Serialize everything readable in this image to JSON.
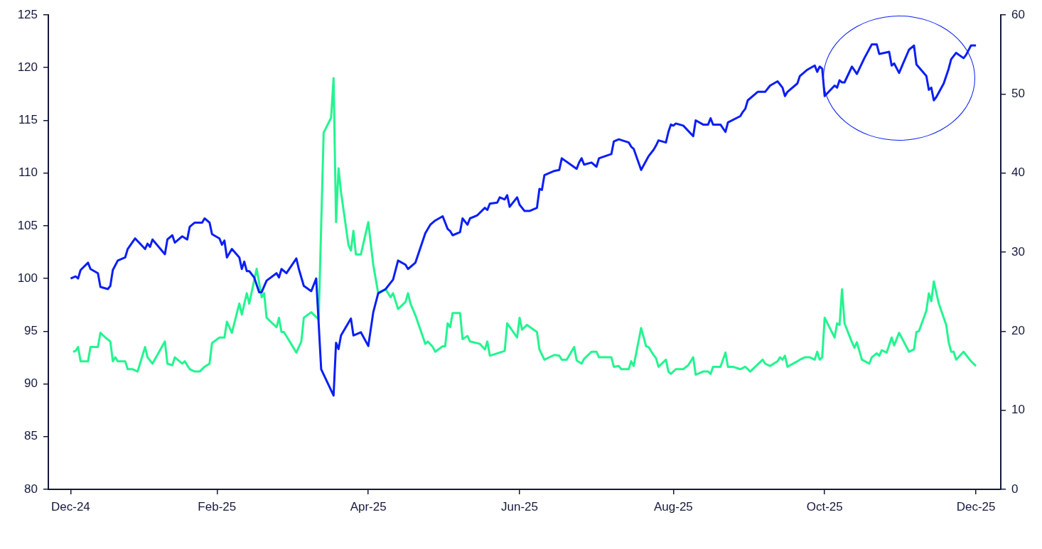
{
  "chart_data": {
    "type": "line",
    "marker": "none",
    "grid": false,
    "xlim": [
      "2024-12-22",
      "2026-01-10"
    ],
    "xticks": [
      {
        "value": "2024-12-31",
        "label": "Dec-24"
      },
      {
        "value": "2025-02-28",
        "label": "Feb-25"
      },
      {
        "value": "2025-04-30",
        "label": "Apr-25"
      },
      {
        "value": "2025-06-30",
        "label": "Jun-25"
      },
      {
        "value": "2025-08-31",
        "label": "Aug-25"
      },
      {
        "value": "2025-10-31",
        "label": "Oct-25"
      },
      {
        "value": "2025-12-31",
        "label": "Dec-25"
      }
    ],
    "ylim": [
      80,
      125
    ],
    "yticks": [
      80,
      85,
      90,
      95,
      100,
      105,
      110,
      115,
      120,
      125
    ],
    "y2lim": [
      0,
      60
    ],
    "y2ticks": [
      0,
      10,
      20,
      30,
      40,
      50,
      60
    ],
    "series": [
      {
        "color": "#0a1ef5",
        "x": [
          "2024-12-31",
          "2025-01-02",
          "2025-01-03",
          "2025-01-04",
          "2025-01-07",
          "2025-01-08",
          "2025-01-11",
          "2025-01-12",
          "2025-01-15",
          "2025-01-16",
          "2025-01-17",
          "2025-01-19",
          "2025-01-22",
          "2025-01-23",
          "2025-01-26",
          "2025-01-30",
          "2025-01-31",
          "2025-02-01",
          "2025-02-02",
          "2025-02-07",
          "2025-02-08",
          "2025-02-10",
          "2025-02-11",
          "2025-02-14",
          "2025-02-16",
          "2025-02-17",
          "2025-02-19",
          "2025-02-22",
          "2025-02-23",
          "2025-02-25",
          "2025-02-26",
          "2025-03-01",
          "2025-03-02",
          "2025-03-03",
          "2025-03-04",
          "2025-03-06",
          "2025-03-09",
          "2025-03-10",
          "2025-03-11",
          "2025-03-12",
          "2025-03-13",
          "2025-03-15",
          "2025-03-17",
          "2025-03-18",
          "2025-03-20",
          "2025-03-24",
          "2025-03-25",
          "2025-03-26",
          "2025-03-28",
          "2025-04-01",
          "2025-04-02",
          "2025-04-04",
          "2025-04-07",
          "2025-04-09",
          "2025-04-11",
          "2025-04-16",
          "2025-04-17",
          "2025-04-18",
          "2025-04-19",
          "2025-04-23",
          "2025-04-24",
          "2025-04-27",
          "2025-04-30",
          "2025-05-02",
          "2025-05-04",
          "2025-05-07",
          "2025-05-10",
          "2025-05-12",
          "2025-05-15",
          "2025-05-16",
          "2025-05-19",
          "2025-05-23",
          "2025-05-25",
          "2025-05-27",
          "2025-05-30",
          "2025-06-01",
          "2025-06-02",
          "2025-06-03",
          "2025-06-06",
          "2025-06-07",
          "2025-06-09",
          "2025-06-10",
          "2025-06-13",
          "2025-06-16",
          "2025-06-17",
          "2025-06-18",
          "2025-06-21",
          "2025-06-22",
          "2025-06-24",
          "2025-06-25",
          "2025-06-26",
          "2025-06-29",
          "2025-06-30",
          "2025-07-02",
          "2025-07-04",
          "2025-07-07",
          "2025-07-08",
          "2025-07-09",
          "2025-07-10",
          "2025-07-14",
          "2025-07-16",
          "2025-07-17",
          "2025-07-23",
          "2025-07-24",
          "2025-07-25",
          "2025-07-26",
          "2025-07-29",
          "2025-07-31",
          "2025-08-01",
          "2025-08-06",
          "2025-08-07",
          "2025-08-09",
          "2025-08-13",
          "2025-08-14",
          "2025-08-15",
          "2025-08-18",
          "2025-08-21",
          "2025-08-23",
          "2025-08-24",
          "2025-08-25",
          "2025-08-28",
          "2025-08-29",
          "2025-08-30",
          "2025-08-31",
          "2025-09-01",
          "2025-09-04",
          "2025-09-08",
          "2025-09-09",
          "2025-09-12",
          "2025-09-14",
          "2025-09-15",
          "2025-09-16",
          "2025-09-19",
          "2025-09-21",
          "2025-09-22",
          "2025-09-27",
          "2025-09-28",
          "2025-09-29",
          "2025-09-30",
          "2025-10-04",
          "2025-10-07",
          "2025-10-09",
          "2025-10-12",
          "2025-10-14",
          "2025-10-15",
          "2025-10-16",
          "2025-10-20",
          "2025-10-21",
          "2025-10-24",
          "2025-10-27",
          "2025-10-28",
          "2025-10-29",
          "2025-10-30",
          "2025-10-31",
          "2025-11-04",
          "2025-11-05",
          "2025-11-06",
          "2025-11-07",
          "2025-11-08",
          "2025-11-11",
          "2025-11-13",
          "2025-11-14",
          "2025-11-16",
          "2025-11-19",
          "2025-11-21",
          "2025-11-22",
          "2025-11-26",
          "2025-11-27",
          "2025-11-28",
          "2025-11-30",
          "2025-12-04",
          "2025-12-06",
          "2025-12-07",
          "2025-12-11",
          "2025-12-12",
          "2025-12-13",
          "2025-12-14",
          "2025-12-15",
          "2025-12-18",
          "2025-12-20",
          "2025-12-21",
          "2025-12-23",
          "2025-12-26",
          "2025-12-27",
          "2025-12-29",
          "2025-12-31"
        ],
        "values": [
          100.0,
          100.2,
          100.0,
          100.8,
          101.5,
          100.9,
          100.5,
          99.2,
          99.0,
          99.3,
          100.8,
          101.7,
          102.0,
          102.8,
          103.8,
          102.8,
          103.3,
          103.0,
          103.7,
          102.3,
          103.7,
          104.1,
          103.4,
          104.0,
          103.7,
          104.9,
          105.3,
          105.3,
          105.7,
          105.3,
          104.2,
          103.8,
          103.2,
          103.6,
          102.0,
          102.8,
          102.0,
          100.9,
          101.6,
          100.7,
          100.7,
          100.1,
          98.7,
          98.7,
          99.8,
          100.5,
          100.1,
          100.9,
          100.5,
          101.9,
          100.9,
          99.3,
          98.8,
          100.0,
          91.4,
          88.9,
          93.9,
          93.3,
          94.6,
          96.2,
          94.6,
          94.9,
          93.6,
          96.8,
          98.6,
          99.0,
          99.9,
          101.7,
          101.3,
          100.9,
          101.5,
          104.3,
          105.1,
          105.5,
          105.9,
          104.7,
          104.5,
          104.1,
          104.4,
          105.7,
          105.1,
          105.7,
          106.0,
          106.7,
          106.5,
          107.1,
          107.2,
          107.7,
          107.5,
          107.9,
          106.8,
          107.7,
          107.0,
          106.4,
          106.4,
          106.7,
          108.5,
          108.4,
          109.8,
          110.2,
          110.3,
          111.4,
          110.4,
          111.0,
          111.4,
          110.8,
          111.0,
          110.6,
          111.4,
          111.8,
          113.0,
          113.2,
          112.9,
          112.5,
          112.3,
          110.3,
          111.6,
          112.2,
          112.6,
          113.1,
          112.9,
          113.9,
          114.6,
          114.5,
          114.7,
          114.5,
          113.5,
          115.0,
          114.6,
          114.6,
          115.2,
          114.6,
          114.6,
          113.9,
          114.8,
          115.4,
          115.8,
          116.1,
          116.9,
          117.7,
          117.7,
          118.3,
          118.7,
          118.1,
          117.3,
          117.7,
          118.5,
          119.2,
          119.8,
          120.2,
          119.6,
          120.1,
          119.9,
          117.3,
          118.3,
          118.1,
          118.8,
          118.6,
          118.6,
          120.1,
          119.4,
          119.9,
          120.9,
          122.2,
          122.2,
          121.3,
          121.5,
          120.2,
          120.4,
          119.5,
          121.7,
          122.1,
          120.3,
          119.2,
          117.9,
          118.1,
          116.9,
          117.2,
          118.5,
          119.9,
          120.8,
          121.4,
          120.9,
          121.2,
          122.1,
          122.1
        ]
      },
      {
        "color": "#22f58f",
        "axis": "y2",
        "x": [
          "2025-01-01",
          "2025-01-02",
          "2025-01-03",
          "2025-01-04",
          "2025-01-07",
          "2025-01-08",
          "2025-01-11",
          "2025-01-12",
          "2025-01-14",
          "2025-01-16",
          "2025-01-17",
          "2025-01-18",
          "2025-01-19",
          "2025-01-22",
          "2025-01-23",
          "2025-01-25",
          "2025-01-27",
          "2025-01-30",
          "2025-01-31",
          "2025-02-02",
          "2025-02-07",
          "2025-02-08",
          "2025-02-10",
          "2025-02-11",
          "2025-02-14",
          "2025-02-15",
          "2025-02-17",
          "2025-02-19",
          "2025-02-21",
          "2025-02-23",
          "2025-02-25",
          "2025-02-26",
          "2025-03-01",
          "2025-03-03",
          "2025-03-04",
          "2025-03-06",
          "2025-03-09",
          "2025-03-10",
          "2025-03-12",
          "2025-03-13",
          "2025-03-16",
          "2025-03-18",
          "2025-03-19",
          "2025-03-20",
          "2025-03-24",
          "2025-03-25",
          "2025-03-26",
          "2025-03-27",
          "2025-04-01",
          "2025-04-03",
          "2025-04-04",
          "2025-04-07",
          "2025-04-10",
          "2025-04-12",
          "2025-04-15",
          "2025-04-16",
          "2025-04-17",
          "2025-04-18",
          "2025-04-19",
          "2025-04-22",
          "2025-04-23",
          "2025-04-24",
          "2025-04-25",
          "2025-04-27",
          "2025-04-30",
          "2025-05-02",
          "2025-05-03",
          "2025-05-04",
          "2025-05-07",
          "2025-05-09",
          "2025-05-10",
          "2025-05-12",
          "2025-05-15",
          "2025-05-16",
          "2025-05-17",
          "2025-05-19",
          "2025-05-23",
          "2025-05-24",
          "2025-05-26",
          "2025-05-27",
          "2025-05-30",
          "2025-05-31",
          "2025-06-01",
          "2025-06-02",
          "2025-06-03",
          "2025-06-06",
          "2025-06-07",
          "2025-06-09",
          "2025-06-10",
          "2025-06-14",
          "2025-06-16",
          "2025-06-17",
          "2025-06-18",
          "2025-06-22",
          "2025-06-24",
          "2025-06-25",
          "2025-06-29",
          "2025-06-30",
          "2025-07-01",
          "2025-07-03",
          "2025-07-07",
          "2025-07-08",
          "2025-07-10",
          "2025-07-14",
          "2025-07-16",
          "2025-07-17",
          "2025-07-19",
          "2025-07-22",
          "2025-07-23",
          "2025-07-25",
          "2025-07-26",
          "2025-07-29",
          "2025-07-31",
          "2025-08-01",
          "2025-08-06",
          "2025-08-07",
          "2025-08-09",
          "2025-08-10",
          "2025-08-13",
          "2025-08-14",
          "2025-08-15",
          "2025-08-18",
          "2025-08-20",
          "2025-08-21",
          "2025-08-23",
          "2025-08-24",
          "2025-08-25",
          "2025-08-28",
          "2025-08-29",
          "2025-08-30",
          "2025-09-01",
          "2025-09-04",
          "2025-09-06",
          "2025-09-08",
          "2025-09-09",
          "2025-09-12",
          "2025-09-14",
          "2025-09-15",
          "2025-09-16",
          "2025-09-19",
          "2025-09-21",
          "2025-09-22",
          "2025-09-24",
          "2025-09-27",
          "2025-09-29",
          "2025-10-01",
          "2025-10-06",
          "2025-10-07",
          "2025-10-09",
          "2025-10-12",
          "2025-10-13",
          "2025-10-14",
          "2025-10-15",
          "2025-10-16",
          "2025-10-20",
          "2025-10-21",
          "2025-10-23",
          "2025-10-25",
          "2025-10-27",
          "2025-10-28",
          "2025-10-29",
          "2025-10-30",
          "2025-10-31",
          "2025-11-04",
          "2025-11-05",
          "2025-11-06",
          "2025-11-07",
          "2025-11-08",
          "2025-11-11",
          "2025-11-12",
          "2025-11-13",
          "2025-11-15",
          "2025-11-18",
          "2025-11-19",
          "2025-11-21",
          "2025-11-22",
          "2025-11-23",
          "2025-11-25",
          "2025-11-27",
          "2025-11-28",
          "2025-11-30",
          "2025-12-04",
          "2025-12-06",
          "2025-12-07",
          "2025-12-08",
          "2025-12-11",
          "2025-12-12",
          "2025-12-13",
          "2025-12-14",
          "2025-12-16",
          "2025-12-19",
          "2025-12-20",
          "2025-12-21",
          "2025-12-22",
          "2025-12-23",
          "2025-12-26",
          "2025-12-29",
          "2025-12-31"
        ],
        "values": [
          17.4,
          17.5,
          18.0,
          16.2,
          16.2,
          18.0,
          18.0,
          19.8,
          19.2,
          18.7,
          16.2,
          16.7,
          16.2,
          16.2,
          15.2,
          15.2,
          14.9,
          18.0,
          16.7,
          15.9,
          18.7,
          15.9,
          15.7,
          16.7,
          15.9,
          16.2,
          15.2,
          14.9,
          14.9,
          15.5,
          15.9,
          18.5,
          19.2,
          19.2,
          21.2,
          19.8,
          23.5,
          22.1,
          24.8,
          23.5,
          27.9,
          24.3,
          24.8,
          21.7,
          20.5,
          21.7,
          19.9,
          19.9,
          17.3,
          18.7,
          21.7,
          22.4,
          21.5,
          45.1,
          47.0,
          52.0,
          33.8,
          40.6,
          37.6,
          30.9,
          30.2,
          32.7,
          29.7,
          29.7,
          33.8,
          28.4,
          26.6,
          24.8,
          25.3,
          24.3,
          24.8,
          22.8,
          23.7,
          24.8,
          23.5,
          22.0,
          18.4,
          18.7,
          18.0,
          17.4,
          18.1,
          18.1,
          21.0,
          20.5,
          22.3,
          22.3,
          19.0,
          19.4,
          18.7,
          18.4,
          17.7,
          18.7,
          16.9,
          17.3,
          17.5,
          21.0,
          19.2,
          21.7,
          20.2,
          20.8,
          19.9,
          17.7,
          16.4,
          17.0,
          16.9,
          16.4,
          16.4,
          18.0,
          16.3,
          15.9,
          16.5,
          17.4,
          17.4,
          16.7,
          16.7,
          15.5,
          15.6,
          15.2,
          15.2,
          16.2,
          15.6,
          20.4,
          18.1,
          18.0,
          17.0,
          16.6,
          15.5,
          16.4,
          14.9,
          14.6,
          15.2,
          15.2,
          15.7,
          16.7,
          14.5,
          14.9,
          14.9,
          14.6,
          15.5,
          15.5,
          17.3,
          15.5,
          15.5,
          15.2,
          15.5,
          14.9,
          16.4,
          15.9,
          15.6,
          16.2,
          16.7,
          16.4,
          16.9,
          15.5,
          16.2,
          16.4,
          16.7,
          16.7,
          16.4,
          17.4,
          16.4,
          16.7,
          21.7,
          19.2,
          21.0,
          20.8,
          25.3,
          21.0,
          18.6,
          17.9,
          18.6,
          16.4,
          15.9,
          16.7,
          17.2,
          16.9,
          17.6,
          17.3,
          19.2,
          18.2,
          19.8,
          17.4,
          17.7,
          19.9,
          20.0,
          22.6,
          24.8,
          23.8,
          26.3,
          23.5,
          20.8,
          18.6,
          17.4,
          17.4,
          16.4,
          17.4,
          16.2,
          15.6
        ]
      }
    ]
  }
}
